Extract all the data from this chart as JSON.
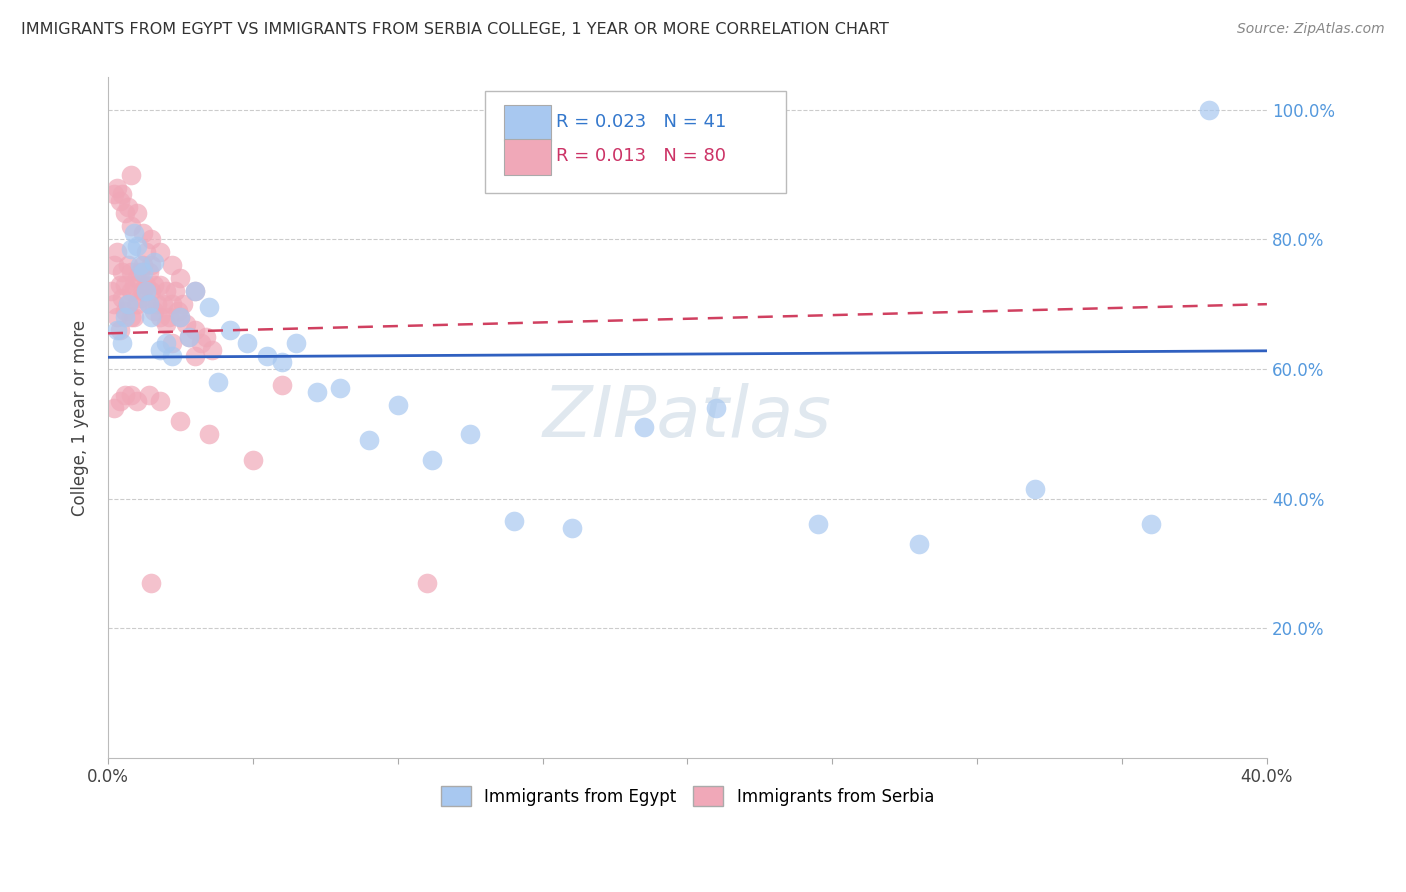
{
  "title": "IMMIGRANTS FROM EGYPT VS IMMIGRANTS FROM SERBIA COLLEGE, 1 YEAR OR MORE CORRELATION CHART",
  "source": "Source: ZipAtlas.com",
  "ylabel": "College, 1 year or more",
  "xlim": [
    0.0,
    0.4
  ],
  "ylim": [
    0.0,
    1.05
  ],
  "egypt_color": "#A8C8F0",
  "serbia_color": "#F0A8B8",
  "egypt_R": 0.023,
  "egypt_N": 41,
  "serbia_R": 0.013,
  "serbia_N": 80,
  "egypt_line_color": "#3060C0",
  "serbia_line_color": "#D04060",
  "egypt_scatter_x": [
    0.003,
    0.005,
    0.006,
    0.007,
    0.008,
    0.009,
    0.01,
    0.011,
    0.012,
    0.013,
    0.014,
    0.015,
    0.016,
    0.018,
    0.02,
    0.022,
    0.025,
    0.028,
    0.03,
    0.035,
    0.038,
    0.042,
    0.048,
    0.055,
    0.06,
    0.065,
    0.072,
    0.08,
    0.09,
    0.1,
    0.112,
    0.125,
    0.14,
    0.16,
    0.185,
    0.21,
    0.245,
    0.28,
    0.32,
    0.36,
    0.38
  ],
  "egypt_scatter_y": [
    0.66,
    0.64,
    0.68,
    0.7,
    0.785,
    0.81,
    0.79,
    0.76,
    0.75,
    0.72,
    0.7,
    0.68,
    0.765,
    0.63,
    0.64,
    0.62,
    0.68,
    0.65,
    0.72,
    0.695,
    0.58,
    0.66,
    0.64,
    0.62,
    0.61,
    0.64,
    0.565,
    0.57,
    0.49,
    0.545,
    0.46,
    0.5,
    0.365,
    0.355,
    0.51,
    0.54,
    0.36,
    0.33,
    0.415,
    0.36,
    1.0
  ],
  "serbia_scatter_x": [
    0.001,
    0.002,
    0.002,
    0.003,
    0.003,
    0.004,
    0.004,
    0.005,
    0.005,
    0.006,
    0.006,
    0.007,
    0.007,
    0.008,
    0.008,
    0.008,
    0.009,
    0.009,
    0.01,
    0.01,
    0.011,
    0.011,
    0.012,
    0.012,
    0.013,
    0.013,
    0.014,
    0.014,
    0.015,
    0.015,
    0.016,
    0.016,
    0.017,
    0.018,
    0.018,
    0.019,
    0.02,
    0.02,
    0.021,
    0.022,
    0.023,
    0.024,
    0.025,
    0.026,
    0.027,
    0.028,
    0.03,
    0.032,
    0.034,
    0.036,
    0.002,
    0.003,
    0.004,
    0.005,
    0.006,
    0.007,
    0.008,
    0.01,
    0.012,
    0.015,
    0.018,
    0.022,
    0.025,
    0.03,
    0.002,
    0.004,
    0.006,
    0.008,
    0.01,
    0.014,
    0.018,
    0.025,
    0.035,
    0.05,
    0.015,
    0.022,
    0.008,
    0.03,
    0.06,
    0.11
  ],
  "serbia_scatter_y": [
    0.72,
    0.76,
    0.7,
    0.78,
    0.68,
    0.73,
    0.66,
    0.75,
    0.71,
    0.73,
    0.69,
    0.76,
    0.7,
    0.75,
    0.72,
    0.68,
    0.73,
    0.68,
    0.74,
    0.7,
    0.75,
    0.71,
    0.76,
    0.72,
    0.78,
    0.73,
    0.75,
    0.7,
    0.76,
    0.72,
    0.73,
    0.69,
    0.7,
    0.73,
    0.68,
    0.7,
    0.72,
    0.67,
    0.68,
    0.7,
    0.72,
    0.69,
    0.68,
    0.7,
    0.67,
    0.65,
    0.66,
    0.64,
    0.65,
    0.63,
    0.87,
    0.88,
    0.86,
    0.87,
    0.84,
    0.85,
    0.82,
    0.84,
    0.81,
    0.8,
    0.78,
    0.76,
    0.74,
    0.72,
    0.54,
    0.55,
    0.56,
    0.56,
    0.55,
    0.56,
    0.55,
    0.52,
    0.5,
    0.46,
    0.27,
    0.64,
    0.9,
    0.62,
    0.575,
    0.27
  ],
  "egypt_line_x": [
    0.0,
    0.4
  ],
  "egypt_line_y": [
    0.618,
    0.628
  ],
  "serbia_line_x": [
    0.0,
    0.4
  ],
  "serbia_line_y": [
    0.655,
    0.7
  ]
}
